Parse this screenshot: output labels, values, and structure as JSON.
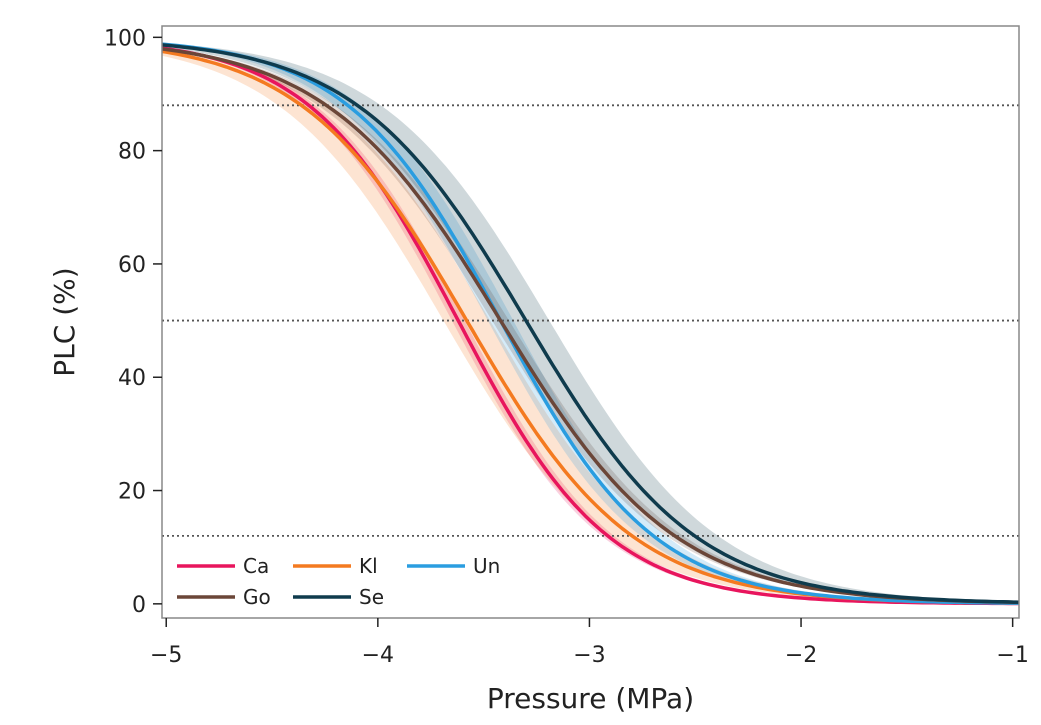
{
  "chart_data": {
    "type": "line",
    "title": "",
    "xlabel": "Pressure (MPa)",
    "ylabel": "PLC (%)",
    "xlim": [
      -5.02,
      -0.97
    ],
    "ylim": [
      -2.5,
      102
    ],
    "xticks": [
      -5,
      -4,
      -3,
      -2,
      -1
    ],
    "xtick_labels": [
      "−5",
      "−4",
      "−3",
      "−2",
      "−1"
    ],
    "yticks": [
      0,
      20,
      40,
      60,
      80,
      100
    ],
    "ytick_labels": [
      "0",
      "20",
      "40",
      "60",
      "80",
      "100"
    ],
    "reference_lines": [
      12,
      50,
      88
    ],
    "grid": false,
    "legend_position": "bottom-left",
    "series": [
      {
        "name": "Ca",
        "color": "#e8155d",
        "p50": -3.62,
        "slope": 2.82,
        "band_p50": [
          -3.65,
          -3.59
        ]
      },
      {
        "name": "Kl",
        "color": "#f47a20",
        "p50": -3.58,
        "slope": 2.55,
        "band_p50": [
          -3.69,
          -3.47
        ]
      },
      {
        "name": "Un",
        "color": "#2a9de0",
        "p50": -3.42,
        "slope": 2.76,
        "band_p50": [
          -3.48,
          -3.36
        ]
      },
      {
        "name": "Go",
        "color": "#6b4638",
        "p50": -3.42,
        "slope": 2.42,
        "band_p50": [
          -3.46,
          -3.38
        ]
      },
      {
        "name": "Se",
        "color": "#0f3b4d",
        "p50": -3.3,
        "slope": 2.5,
        "band_p50": [
          -3.41,
          -3.19
        ]
      }
    ]
  }
}
